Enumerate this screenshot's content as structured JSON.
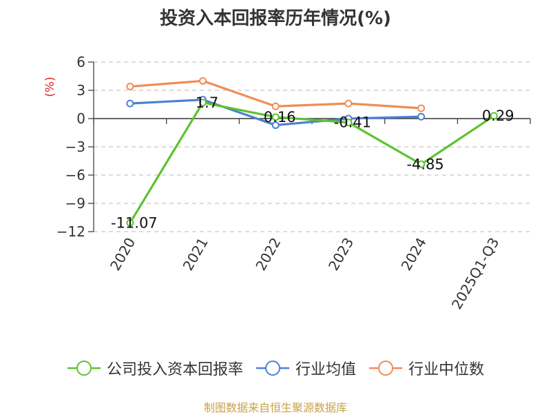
{
  "chart_data": {
    "type": "line",
    "title": "投资入本回报率历年情况(%)",
    "ylabel": "(%)",
    "categories": [
      "2020",
      "2021",
      "2022",
      "2023",
      "2024",
      "2025Q1-Q3"
    ],
    "ylim": [
      -12,
      6
    ],
    "yticks": [
      6,
      3,
      0,
      -3,
      -6,
      -9,
      -12
    ],
    "grid": true,
    "legend_position": "bottom",
    "series": [
      {
        "name": "公司投入资本回报率",
        "color": "#5cc22f",
        "values": [
          -11.07,
          1.7,
          0.16,
          -0.41,
          -4.85,
          0.29
        ],
        "labels": [
          "-11.07",
          "1.7",
          "0.16",
          "-0.41",
          "-4.85",
          "0.29"
        ]
      },
      {
        "name": "行业均值",
        "color": "#4a7fd6",
        "values": [
          1.6,
          2.0,
          -0.7,
          0.0,
          0.2,
          null
        ]
      },
      {
        "name": "行业中位数",
        "color": "#f08c55",
        "values": [
          3.4,
          4.0,
          1.3,
          1.6,
          1.1,
          null
        ]
      }
    ]
  },
  "source": "制图数据来自恒生聚源数据库"
}
